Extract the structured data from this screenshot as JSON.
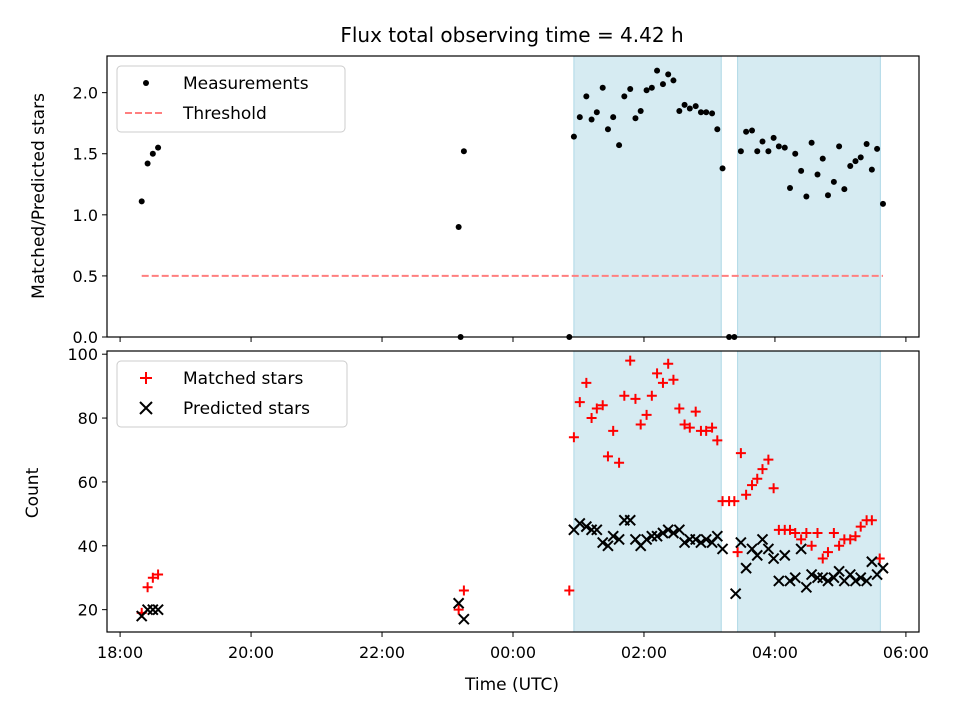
{
  "chart_data": [
    {
      "type": "scatter",
      "title": "Flux total observing time = 4.42 h",
      "ylabel": "Matched/Predicted stars",
      "xlabel": "",
      "x_unit": "hours since 18:00 UTC (date axis)",
      "ylim": [
        0,
        2.3
      ],
      "yticks": [
        0.0,
        0.5,
        1.0,
        1.5,
        2.0
      ],
      "ytick_labels": [
        "0.0",
        "0.5",
        "1.0",
        "1.5",
        "2.0"
      ],
      "shaded_intervals": [
        [
          6.93,
          9.18
        ],
        [
          9.43,
          11.61
        ]
      ],
      "legend_position": "upper-left",
      "series": [
        {
          "name": "Measurements",
          "color": "#000000",
          "marker": "dot",
          "points": [
            [
              0.33,
              1.11
            ],
            [
              0.42,
              1.42
            ],
            [
              0.5,
              1.5
            ],
            [
              0.58,
              1.55
            ],
            [
              5.17,
              0.9
            ],
            [
              5.2,
              0.0
            ],
            [
              5.25,
              1.52
            ],
            [
              6.86,
              0.0
            ],
            [
              6.93,
              1.64
            ],
            [
              7.02,
              1.8
            ],
            [
              7.12,
              1.97
            ],
            [
              7.2,
              1.78
            ],
            [
              7.28,
              1.84
            ],
            [
              7.37,
              2.04
            ],
            [
              7.45,
              1.7
            ],
            [
              7.53,
              1.8
            ],
            [
              7.62,
              1.57
            ],
            [
              7.7,
              1.97
            ],
            [
              7.79,
              2.03
            ],
            [
              7.87,
              1.79
            ],
            [
              7.95,
              1.85
            ],
            [
              8.04,
              2.02
            ],
            [
              8.12,
              2.04
            ],
            [
              8.2,
              2.18
            ],
            [
              8.29,
              2.07
            ],
            [
              8.37,
              2.15
            ],
            [
              8.45,
              2.1
            ],
            [
              8.54,
              1.85
            ],
            [
              8.62,
              1.9
            ],
            [
              8.7,
              1.87
            ],
            [
              8.79,
              1.89
            ],
            [
              8.87,
              1.84
            ],
            [
              8.95,
              1.84
            ],
            [
              9.04,
              1.83
            ],
            [
              9.12,
              1.7
            ],
            [
              9.2,
              1.38
            ],
            [
              9.3,
              0.0
            ],
            [
              9.38,
              0.0
            ],
            [
              9.48,
              1.52
            ],
            [
              9.56,
              1.68
            ],
            [
              9.65,
              1.69
            ],
            [
              9.73,
              1.52
            ],
            [
              9.81,
              1.6
            ],
            [
              9.9,
              1.52
            ],
            [
              9.98,
              1.63
            ],
            [
              10.06,
              1.56
            ],
            [
              10.15,
              1.55
            ],
            [
              10.23,
              1.22
            ],
            [
              10.31,
              1.5
            ],
            [
              10.4,
              1.36
            ],
            [
              10.48,
              1.15
            ],
            [
              10.56,
              1.59
            ],
            [
              10.65,
              1.33
            ],
            [
              10.73,
              1.46
            ],
            [
              10.81,
              1.16
            ],
            [
              10.9,
              1.27
            ],
            [
              10.98,
              1.56
            ],
            [
              11.06,
              1.21
            ],
            [
              11.15,
              1.4
            ],
            [
              11.23,
              1.44
            ],
            [
              11.31,
              1.47
            ],
            [
              11.4,
              1.58
            ],
            [
              11.48,
              1.37
            ],
            [
              11.56,
              1.54
            ],
            [
              11.65,
              1.09
            ]
          ]
        },
        {
          "name": "Threshold",
          "color": "#ff7f7f",
          "style": "dashed",
          "points": [
            [
              0.33,
              0.5
            ],
            [
              11.65,
              0.5
            ]
          ]
        }
      ]
    },
    {
      "type": "scatter",
      "title": "",
      "ylabel": "Count",
      "xlabel": "Time (UTC)",
      "x_unit": "hours since 18:00 UTC (date axis)",
      "xticks": [
        0,
        2,
        4,
        6,
        8,
        10,
        12
      ],
      "xtick_labels": [
        "18:00",
        "20:00",
        "22:00",
        "00:00",
        "02:00",
        "04:00",
        "06:00"
      ],
      "ylim": [
        13,
        101
      ],
      "yticks": [
        20,
        40,
        60,
        80,
        100
      ],
      "ytick_labels": [
        "20",
        "40",
        "60",
        "80",
        "100"
      ],
      "shaded_intervals": [
        [
          6.93,
          9.18
        ],
        [
          9.43,
          11.61
        ]
      ],
      "legend_position": "upper-left",
      "series": [
        {
          "name": "Matched stars",
          "color": "#ff0000",
          "marker": "plus",
          "points": [
            [
              0.33,
              19
            ],
            [
              0.42,
              27
            ],
            [
              0.5,
              30
            ],
            [
              0.58,
              31
            ],
            [
              5.17,
              20
            ],
            [
              5.25,
              26
            ],
            [
              6.86,
              26
            ],
            [
              6.93,
              74
            ],
            [
              7.02,
              85
            ],
            [
              7.12,
              91
            ],
            [
              7.2,
              80
            ],
            [
              7.28,
              83
            ],
            [
              7.37,
              84
            ],
            [
              7.45,
              68
            ],
            [
              7.53,
              76
            ],
            [
              7.62,
              66
            ],
            [
              7.7,
              87
            ],
            [
              7.79,
              98
            ],
            [
              7.87,
              86
            ],
            [
              7.95,
              78
            ],
            [
              8.04,
              81
            ],
            [
              8.12,
              87
            ],
            [
              8.2,
              94
            ],
            [
              8.29,
              91
            ],
            [
              8.37,
              97
            ],
            [
              8.45,
              92
            ],
            [
              8.54,
              83
            ],
            [
              8.62,
              78
            ],
            [
              8.7,
              77
            ],
            [
              8.79,
              82
            ],
            [
              8.87,
              76
            ],
            [
              8.95,
              76
            ],
            [
              9.04,
              77
            ],
            [
              9.12,
              73
            ],
            [
              9.2,
              54
            ],
            [
              9.3,
              54
            ],
            [
              9.38,
              54
            ],
            [
              9.43,
              38
            ],
            [
              9.48,
              69
            ],
            [
              9.56,
              56
            ],
            [
              9.65,
              59
            ],
            [
              9.73,
              61
            ],
            [
              9.81,
              64
            ],
            [
              9.9,
              67
            ],
            [
              9.98,
              58
            ],
            [
              10.06,
              45
            ],
            [
              10.15,
              45
            ],
            [
              10.23,
              45
            ],
            [
              10.31,
              44
            ],
            [
              10.4,
              42
            ],
            [
              10.48,
              44
            ],
            [
              10.56,
              40
            ],
            [
              10.65,
              44
            ],
            [
              10.73,
              36
            ],
            [
              10.81,
              38
            ],
            [
              10.9,
              44
            ],
            [
              10.98,
              40
            ],
            [
              11.06,
              42
            ],
            [
              11.15,
              42
            ],
            [
              11.23,
              43
            ],
            [
              11.31,
              46
            ],
            [
              11.4,
              48
            ],
            [
              11.48,
              48
            ],
            [
              11.6,
              36
            ]
          ]
        },
        {
          "name": "Predicted stars",
          "color": "#000000",
          "marker": "x",
          "points": [
            [
              0.33,
              18
            ],
            [
              0.42,
              20
            ],
            [
              0.5,
              20
            ],
            [
              0.58,
              20
            ],
            [
              5.17,
              22
            ],
            [
              5.25,
              17
            ],
            [
              6.93,
              45
            ],
            [
              7.02,
              47
            ],
            [
              7.12,
              46
            ],
            [
              7.2,
              45
            ],
            [
              7.28,
              45
            ],
            [
              7.37,
              41
            ],
            [
              7.45,
              40
            ],
            [
              7.53,
              43
            ],
            [
              7.62,
              42
            ],
            [
              7.7,
              48
            ],
            [
              7.79,
              48
            ],
            [
              7.87,
              42
            ],
            [
              7.95,
              40
            ],
            [
              8.04,
              42
            ],
            [
              8.12,
              43
            ],
            [
              8.2,
              43
            ],
            [
              8.29,
              44
            ],
            [
              8.37,
              45
            ],
            [
              8.45,
              44
            ],
            [
              8.54,
              45
            ],
            [
              8.62,
              41
            ],
            [
              8.7,
              42
            ],
            [
              8.79,
              42
            ],
            [
              8.87,
              41
            ],
            [
              8.95,
              42
            ],
            [
              9.04,
              41
            ],
            [
              9.12,
              43
            ],
            [
              9.2,
              39
            ],
            [
              9.4,
              25
            ],
            [
              9.48,
              41
            ],
            [
              9.56,
              33
            ],
            [
              9.65,
              39
            ],
            [
              9.73,
              37
            ],
            [
              9.81,
              42
            ],
            [
              9.9,
              39
            ],
            [
              9.98,
              36
            ],
            [
              10.06,
              29
            ],
            [
              10.15,
              37
            ],
            [
              10.23,
              29
            ],
            [
              10.31,
              30
            ],
            [
              10.4,
              39
            ],
            [
              10.48,
              27
            ],
            [
              10.56,
              31
            ],
            [
              10.65,
              30
            ],
            [
              10.73,
              30
            ],
            [
              10.81,
              29
            ],
            [
              10.9,
              30
            ],
            [
              10.98,
              32
            ],
            [
              11.06,
              29
            ],
            [
              11.15,
              31
            ],
            [
              11.23,
              29
            ],
            [
              11.31,
              30
            ],
            [
              11.4,
              29
            ],
            [
              11.48,
              35
            ],
            [
              11.56,
              31
            ],
            [
              11.65,
              33
            ]
          ]
        }
      ]
    }
  ]
}
